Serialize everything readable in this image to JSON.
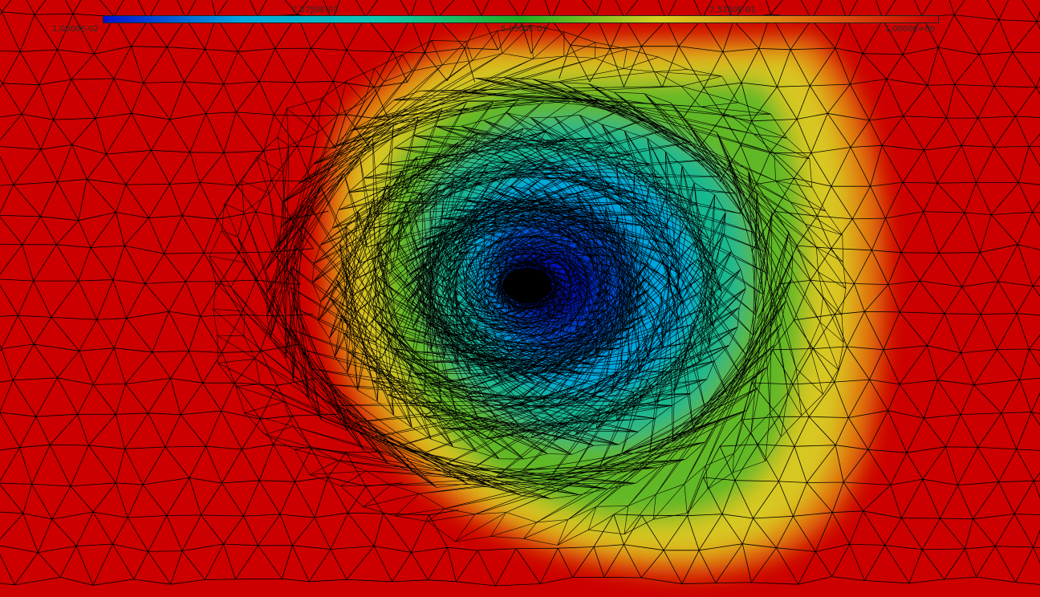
{
  "colorbar": {
    "colors": [
      "#0010d0",
      "#00a8e0",
      "#10c8b0",
      "#20b020",
      "#d8d020",
      "#e07010",
      "#cc0000"
    ],
    "labels_top": [
      "2.5750E-01",
      "7.5250E-01"
    ],
    "labels_bottom": [
      "1.0000E-02",
      "5.0500E-01",
      "1.0000E+00"
    ]
  },
  "field": {
    "background_color": "#cc0000",
    "mesh_line_color": "#000000",
    "center_hole_color": "#000000"
  }
}
